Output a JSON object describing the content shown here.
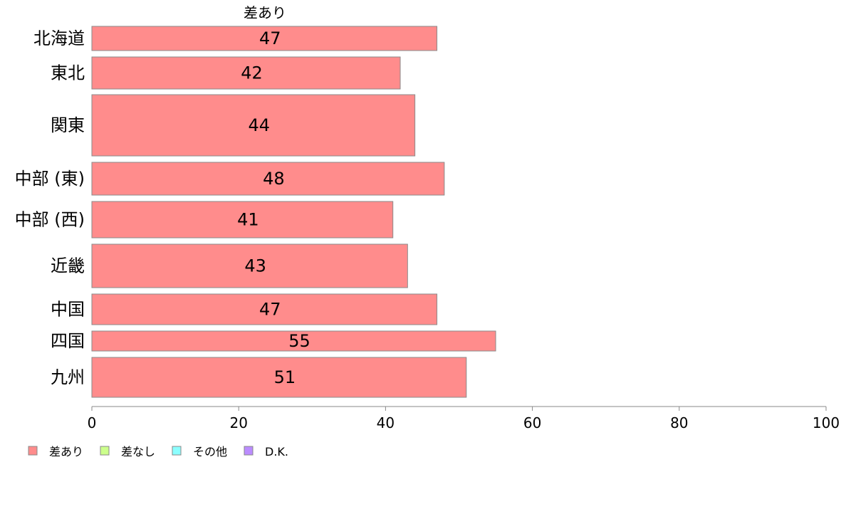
{
  "chart_data": {
    "type": "bar",
    "orientation": "horizontal",
    "variable_width": true,
    "series_title": "差あり",
    "categories": [
      "北海道",
      "東北",
      "関東",
      "中部 (東)",
      "中部 (西)",
      "近畿",
      "中国",
      "四国",
      "九州"
    ],
    "values": [
      47,
      42,
      44,
      48,
      41,
      43,
      47,
      55,
      51
    ],
    "value_labels": [
      "47",
      "42",
      "44",
      "48",
      "41",
      "43",
      "47",
      "55",
      "51"
    ],
    "xlim": [
      0,
      100
    ],
    "x_ticks": [
      0,
      20,
      40,
      60,
      80,
      100
    ],
    "legend": [
      {
        "label": "差あり",
        "color": "#ff8c8c"
      },
      {
        "label": "差なし",
        "color": "#ccff8c"
      },
      {
        "label": "その他",
        "color": "#8cffff"
      },
      {
        "label": "D.K.",
        "color": "#bb8cff"
      }
    ],
    "legend_position": "bottom-left",
    "grid": false,
    "bar_color": "#ff8c8c",
    "bar_edge_color": "#8a8a8a"
  }
}
